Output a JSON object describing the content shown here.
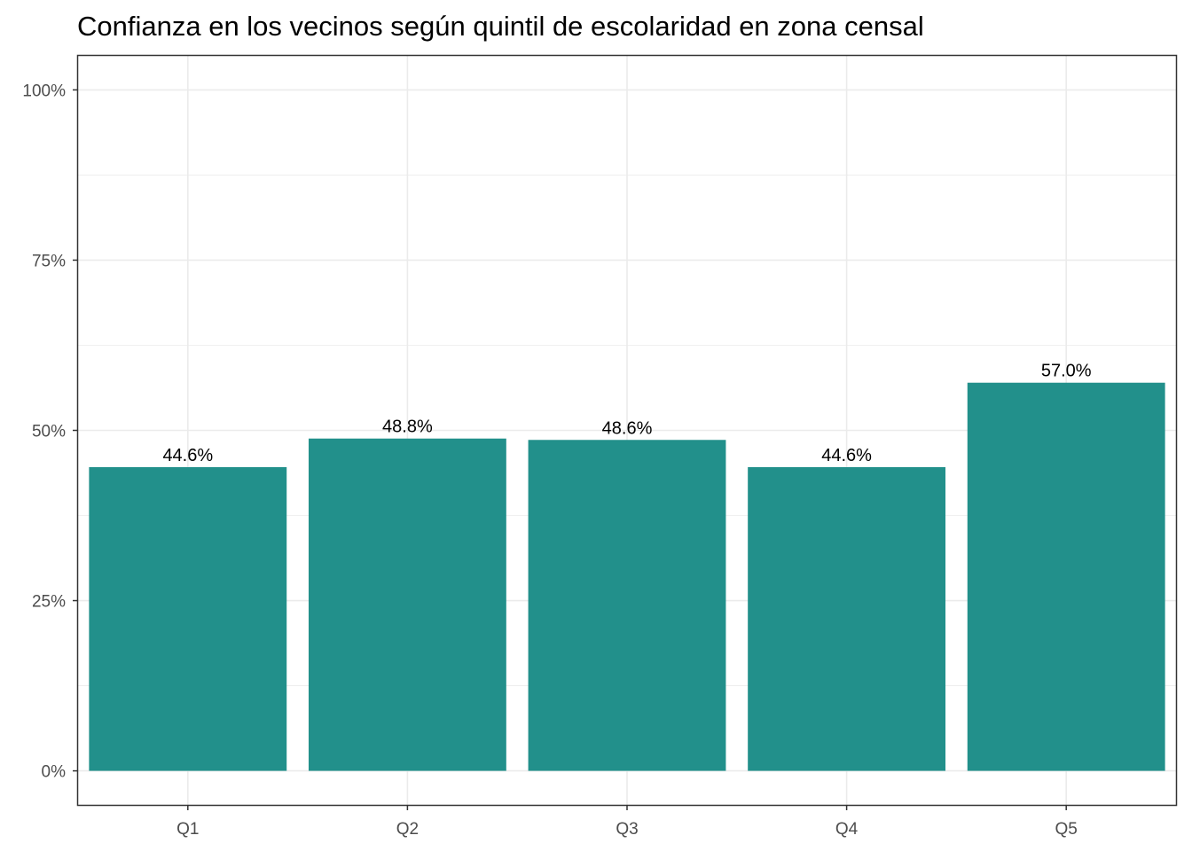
{
  "chart_data": {
    "type": "bar",
    "title": "Confianza en los vecinos según quintil de escolaridad en zona censal",
    "xlabel": "",
    "ylabel": "",
    "categories": [
      "Q1",
      "Q2",
      "Q3",
      "Q4",
      "Q5"
    ],
    "values": [
      44.6,
      48.8,
      48.6,
      44.6,
      57.0
    ],
    "data_labels": [
      "44.6%",
      "48.8%",
      "48.6%",
      "44.6%",
      "57.0%"
    ],
    "ylim": [
      -5,
      105
    ],
    "y_ticks": [
      0,
      25,
      50,
      75,
      100
    ],
    "y_tick_labels": [
      "0%",
      "25%",
      "50%",
      "75%",
      "100%"
    ],
    "grid": true,
    "legend": "none",
    "colors": {
      "bar": "#22908B",
      "grid": "#EBEBEB",
      "border": "#333333",
      "tick_text": "#4D4D4D",
      "text": "#000000"
    }
  }
}
